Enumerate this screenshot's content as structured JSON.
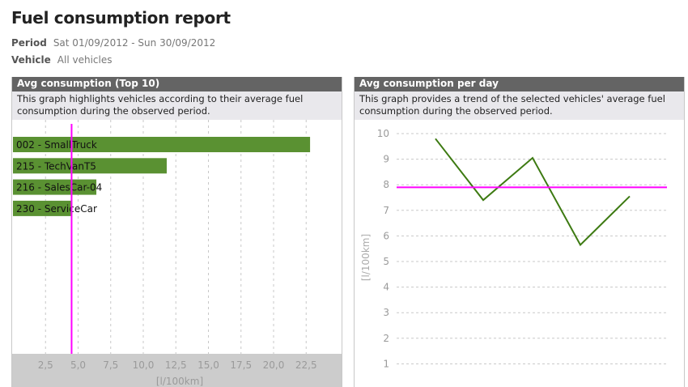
{
  "page": {
    "title": "Fuel consumption report",
    "period_label": "Period",
    "period_value": "Sat 01/09/2012 - Sun 30/09/2012",
    "vehicle_label": "Vehicle",
    "vehicle_value": "All vehicles"
  },
  "panels": {
    "left": {
      "title": "Avg consumption (Top 10)",
      "desc_line1": "This graph highlights vehicles according to their average fuel",
      "desc_line2": "consumption during the observed period."
    },
    "right": {
      "title": "Avg consumption per day",
      "desc_line1": "This graph provides a trend of the selected vehicles' average fuel",
      "desc_line2": "consumption during the observed period."
    }
  },
  "colors": {
    "bar": "#5a9132",
    "line": "#3d7a12",
    "average": "#ff00ff",
    "header": "#646464",
    "desc_bg": "#e9e8ec",
    "axis_band": "#cccccc"
  },
  "chart_data": [
    {
      "type": "bar",
      "orientation": "horizontal",
      "title": "Avg consumption (Top 10)",
      "categories": [
        "002 - SmallTruck",
        "215 - TechVanT5",
        "216 - SalesCar-04",
        "230 - ServiceCar"
      ],
      "values": [
        22.8,
        11.8,
        6.4,
        4.5
      ],
      "average_line": 4.5,
      "xlabel": "[l/100km]",
      "xticks": [
        "2,5",
        "5,0",
        "7,5",
        "10,0",
        "12,5",
        "15,0",
        "17,5",
        "20,0",
        "22,5"
      ],
      "xlim": [
        0,
        25
      ],
      "grid": true
    },
    {
      "type": "line",
      "title": "Avg consumption per day",
      "x": [
        1,
        2,
        3,
        4,
        5
      ],
      "values": [
        9.8,
        7.4,
        9.05,
        5.65,
        7.55
      ],
      "average_line": 7.9,
      "ylabel": "[l/100km]",
      "yticks": [
        "1",
        "2",
        "3",
        "4",
        "5",
        "6",
        "7",
        "8",
        "9",
        "10"
      ],
      "ylim": [
        0,
        10
      ],
      "grid": true
    }
  ]
}
